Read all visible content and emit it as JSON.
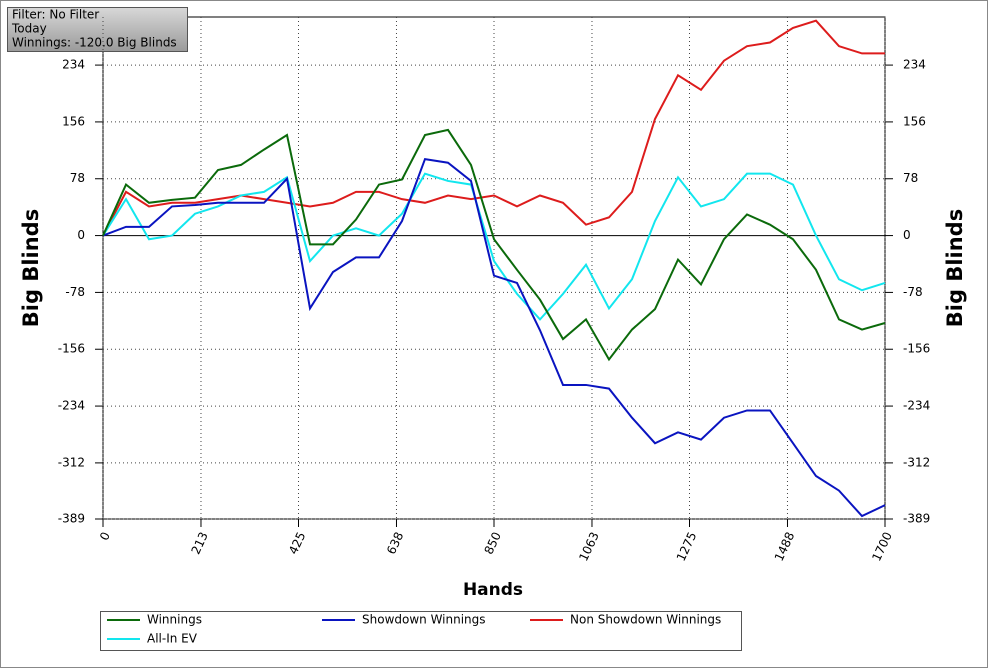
{
  "chart_data": {
    "type": "line",
    "info": [
      "Filter: No Filter",
      "Today",
      "Winnings: -120.0 Big Blinds"
    ],
    "x_label": "Hands",
    "y_label": "Big Blinds",
    "x": [
      0,
      50,
      100,
      150,
      200,
      250,
      300,
      350,
      400,
      450,
      500,
      550,
      600,
      650,
      700,
      750,
      800,
      850,
      900,
      950,
      1000,
      1050,
      1100,
      1150,
      1200,
      1250,
      1300,
      1350,
      1400,
      1450,
      1500,
      1550,
      1600,
      1650,
      1700
    ],
    "series": [
      {
        "name": "Winnings",
        "color": "#0b6a0b",
        "values": [
          0,
          70,
          45,
          49,
          52,
          90,
          97,
          118,
          138,
          -12,
          -12,
          22,
          70,
          77,
          138,
          145,
          97,
          -5,
          -47,
          -88,
          -142,
          -115,
          -170,
          -129,
          -101,
          -33,
          -67,
          -5,
          29,
          15,
          -5,
          -47,
          -115,
          -129,
          -120
        ]
      },
      {
        "name": "Showdown Winnings",
        "color": "#0a14c0",
        "values": [
          0,
          12,
          12,
          40,
          42,
          45,
          45,
          45,
          78,
          -100,
          -50,
          -30,
          -30,
          20,
          105,
          100,
          75,
          -55,
          -65,
          -130,
          -205,
          -205,
          -210,
          -250,
          -285,
          -270,
          -280,
          -250,
          -240,
          -240,
          -285,
          -330,
          -350,
          -385,
          -370
        ]
      },
      {
        "name": "Non Showdown Winnings",
        "color": "#dd1c1c",
        "values": [
          0,
          60,
          40,
          45,
          45,
          50,
          55,
          50,
          45,
          40,
          45,
          60,
          60,
          50,
          45,
          55,
          50,
          55,
          40,
          55,
          45,
          15,
          25,
          60,
          160,
          220,
          200,
          240,
          260,
          265,
          285,
          295,
          260,
          250,
          250
        ]
      },
      {
        "name": "All-In EV",
        "color": "#12e6ee",
        "values": [
          0,
          50,
          -5,
          0,
          30,
          40,
          55,
          60,
          80,
          -35,
          0,
          10,
          0,
          30,
          85,
          75,
          70,
          -35,
          -80,
          -115,
          -80,
          -40,
          -100,
          -60,
          20,
          80,
          40,
          50,
          85,
          85,
          70,
          0,
          -60,
          -75,
          -65
        ]
      }
    ],
    "xlim": [
      0,
      1700
    ],
    "xticks": [
      0,
      213,
      425,
      638,
      850,
      1063,
      1275,
      1488,
      1700
    ],
    "ylim": [
      -389,
      300
    ],
    "yticks": [
      234,
      156,
      78,
      0,
      -78,
      -156,
      -234,
      -312,
      -389
    ],
    "grid": true,
    "legend": "bottom"
  }
}
